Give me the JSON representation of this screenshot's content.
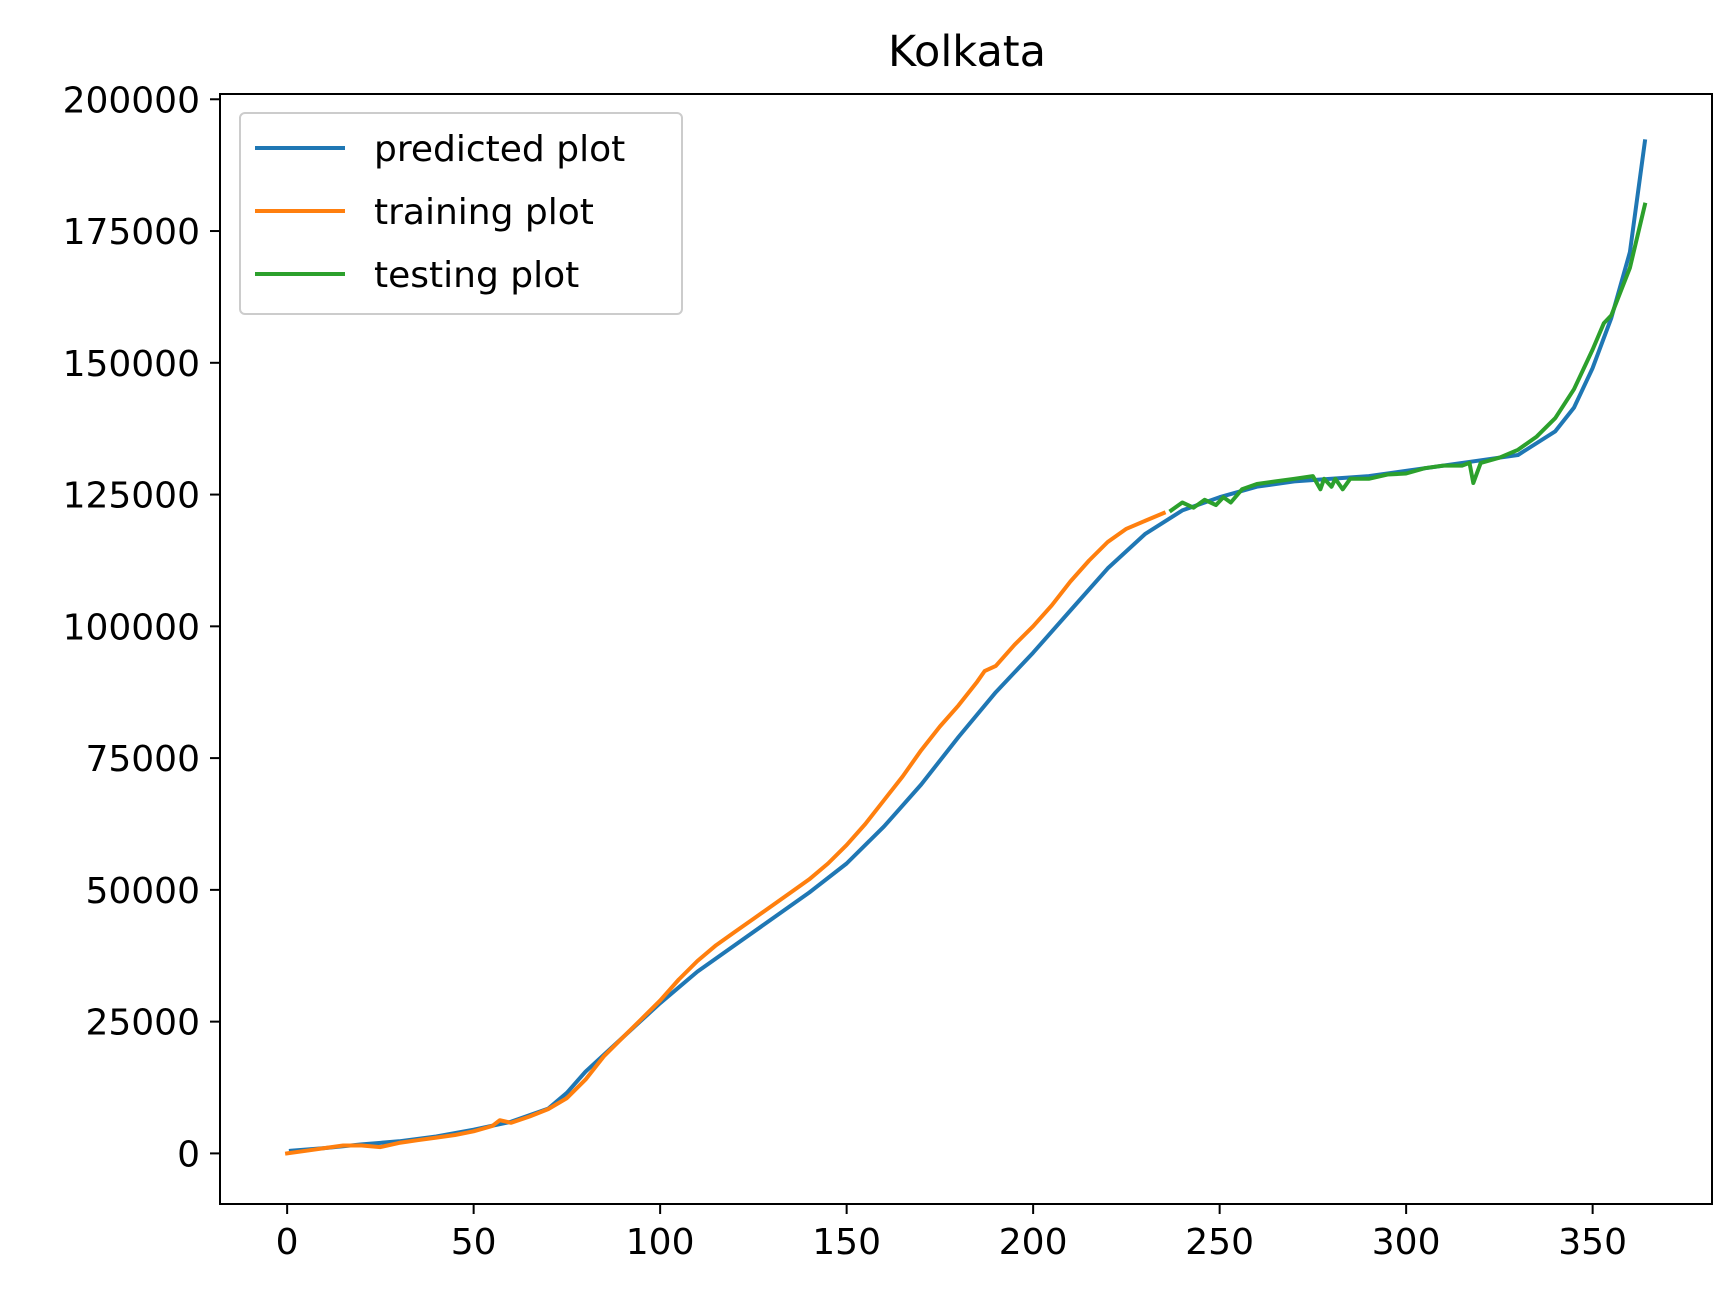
{
  "chart_data": {
    "type": "line",
    "title": "Kolkata",
    "xlabel": "",
    "ylabel": "",
    "xlim": [
      -18,
      382
    ],
    "ylim": [
      -9600,
      201000
    ],
    "x_ticks": [
      0,
      50,
      100,
      150,
      200,
      250,
      300,
      350
    ],
    "y_ticks": [
      0,
      25000,
      50000,
      75000,
      100000,
      125000,
      150000,
      175000,
      200000
    ],
    "grid": false,
    "legend_position": "upper left",
    "series": [
      {
        "name": "predicted plot",
        "color": "#1f77b4",
        "x": [
          1,
          10,
          20,
          30,
          40,
          50,
          60,
          70,
          75,
          80,
          90,
          100,
          110,
          120,
          130,
          140,
          150,
          160,
          170,
          180,
          190,
          200,
          210,
          220,
          230,
          240,
          250,
          260,
          270,
          280,
          290,
          300,
          310,
          320,
          330,
          340,
          345,
          350,
          355,
          360,
          364
        ],
        "y": [
          500,
          1000,
          1700,
          2300,
          3200,
          4500,
          6000,
          8500,
          11500,
          15500,
          22000,
          28500,
          34500,
          39500,
          44500,
          49500,
          55000,
          62000,
          70000,
          79000,
          87500,
          95000,
          103000,
          111000,
          117500,
          122000,
          124500,
          126500,
          127500,
          128000,
          128500,
          129500,
          130500,
          131500,
          132500,
          137000,
          141500,
          149000,
          158500,
          171000,
          192000
        ]
      },
      {
        "name": "training plot",
        "color": "#ff7f0e",
        "x": [
          0,
          5,
          10,
          15,
          20,
          25,
          30,
          35,
          40,
          45,
          50,
          55,
          57,
          60,
          65,
          70,
          75,
          80,
          85,
          90,
          95,
          100,
          105,
          110,
          115,
          120,
          125,
          130,
          135,
          140,
          145,
          150,
          155,
          160,
          165,
          170,
          175,
          180,
          185,
          187,
          190,
          195,
          200,
          205,
          210,
          215,
          220,
          225,
          230,
          235
        ],
        "y": [
          0,
          500,
          1000,
          1500,
          1500,
          1200,
          2000,
          2500,
          3000,
          3500,
          4200,
          5200,
          6300,
          5800,
          7000,
          8400,
          10500,
          14000,
          18500,
          22000,
          25500,
          29000,
          33000,
          36500,
          39500,
          42000,
          44500,
          47000,
          49500,
          52000,
          55000,
          58500,
          62500,
          67000,
          71500,
          76500,
          81000,
          85000,
          89500,
          91500,
          92500,
          96500,
          100000,
          104000,
          108500,
          112500,
          116000,
          118500,
          120000,
          121500
        ]
      },
      {
        "name": "testing plot",
        "color": "#2ca02c",
        "x": [
          237,
          240,
          243,
          246,
          249,
          251,
          253,
          256,
          260,
          265,
          270,
          275,
          277,
          278,
          280,
          281,
          283,
          285,
          290,
          295,
          300,
          305,
          310,
          315,
          317,
          318,
          320,
          325,
          330,
          335,
          340,
          345,
          350,
          353,
          355,
          360,
          364
        ],
        "y": [
          122000,
          123500,
          122500,
          124000,
          123000,
          124500,
          123500,
          126000,
          127000,
          127500,
          128000,
          128500,
          126000,
          128000,
          126500,
          128000,
          126000,
          128000,
          128000,
          128800,
          129000,
          130000,
          130500,
          130500,
          131000,
          127200,
          131000,
          132000,
          133500,
          136000,
          139500,
          145000,
          152500,
          157500,
          159000,
          168000,
          180000
        ]
      }
    ]
  }
}
